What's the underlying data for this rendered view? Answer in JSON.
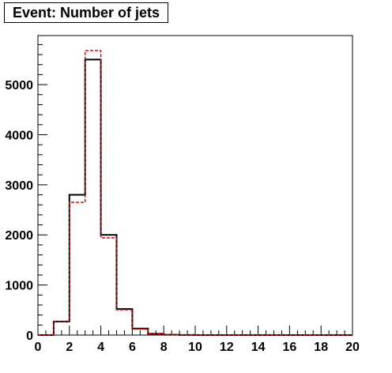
{
  "title": "Event: Number of jets",
  "chart_data": {
    "type": "histogram",
    "title": "Event: Number of jets",
    "xlabel": "",
    "ylabel": "",
    "xlim": [
      0,
      20
    ],
    "ylim": [
      0,
      6000
    ],
    "xticks": [
      0,
      2,
      4,
      6,
      8,
      10,
      12,
      14,
      16,
      18,
      20
    ],
    "yticks": [
      0,
      1000,
      2000,
      3000,
      4000,
      5000
    ],
    "bin_width": 1,
    "bin_edges": [
      0,
      1,
      2,
      3,
      4,
      5,
      6,
      7,
      8,
      9,
      10,
      11,
      12,
      13,
      14,
      15,
      16,
      17,
      18,
      19,
      20
    ],
    "series": [
      {
        "style": "solid",
        "color": "#000000",
        "values": [
          0,
          270,
          2800,
          5500,
          2000,
          520,
          130,
          25,
          5,
          2,
          0,
          0,
          0,
          0,
          0,
          0,
          0,
          0,
          0,
          0
        ]
      },
      {
        "style": "dashed",
        "color": "#dd0000",
        "values": [
          0,
          265,
          2650,
          5680,
          1940,
          505,
          120,
          22,
          5,
          2,
          0,
          0,
          0,
          0,
          0,
          0,
          0,
          0,
          0,
          0
        ]
      }
    ],
    "grid": false,
    "legend": "none"
  }
}
